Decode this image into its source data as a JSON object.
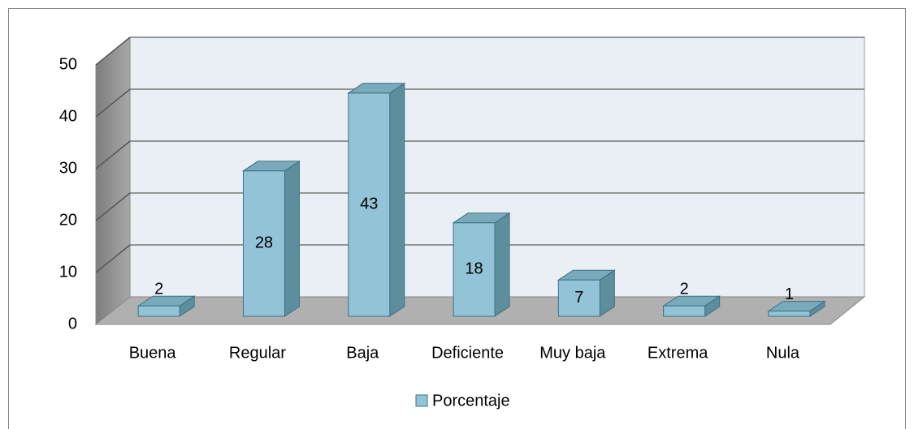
{
  "chart_data": {
    "type": "bar3d",
    "categories": [
      "Buena",
      "Regular",
      "Baja",
      "Deficiente",
      "Muy baja",
      "Extrema",
      "Nula"
    ],
    "series": [
      {
        "name": "Porcentaje",
        "color": "#93c3d6",
        "values": [
          2,
          28,
          43,
          18,
          7,
          2,
          1
        ]
      }
    ],
    "ylim": [
      0,
      50
    ],
    "yticks": [
      0,
      10,
      20,
      30,
      40,
      50
    ],
    "grid": true,
    "legend": "bottom"
  }
}
